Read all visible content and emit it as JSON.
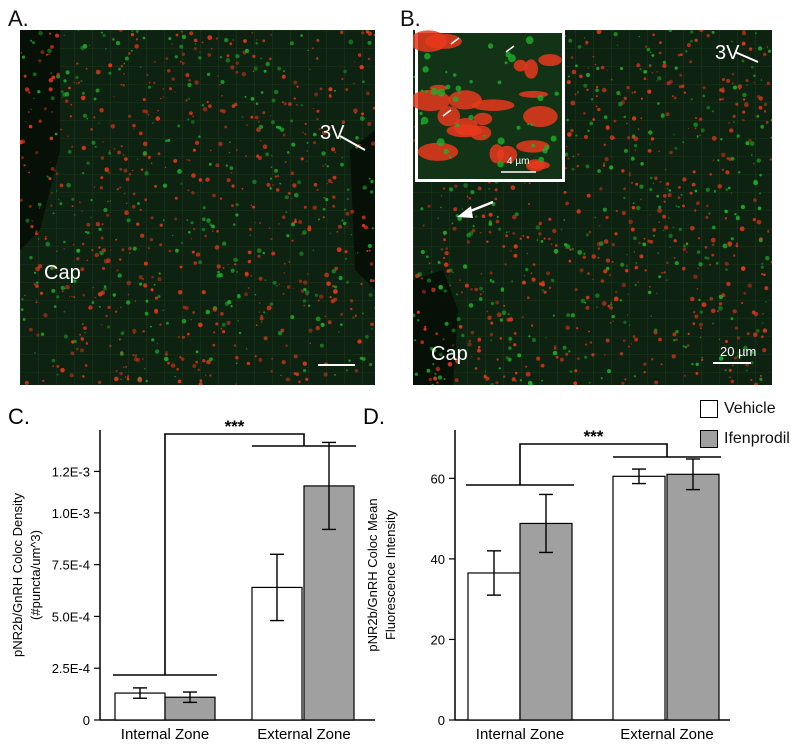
{
  "panels": {
    "a": {
      "letter": "A.",
      "labels": {
        "cap": "Cap",
        "ventricle": "3V"
      }
    },
    "b": {
      "letter": "B.",
      "labels": {
        "cap": "Cap",
        "ventricle": "3V"
      },
      "scale_bar": "20 µm",
      "inset_scale_bar": "4 µm"
    }
  },
  "colors": {
    "vehicle": "#ffffff",
    "ifenprodil": "#a0a0a0",
    "red_channel": "#e8381c",
    "green_channel": "#1fae2a"
  },
  "legend": [
    {
      "name": "Vehicle",
      "color": "#ffffff"
    },
    {
      "name": "Ifenprodil",
      "color": "#a0a0a0"
    }
  ],
  "chart_data": [
    {
      "panel": "C.",
      "type": "bar",
      "categories": [
        "Internal Zone",
        "External Zone"
      ],
      "series": [
        {
          "name": "Vehicle",
          "values": [
            0.00013,
            0.00064
          ],
          "errors": [
            2.5e-05,
            0.00016
          ]
        },
        {
          "name": "Ifenprodil",
          "values": [
            0.00011,
            0.00113
          ],
          "errors": [
            2.5e-05,
            0.00021
          ]
        }
      ],
      "ylabel_lines": [
        "pNR2b/GnRH Coloc Density",
        "(#puncta/um^3)"
      ],
      "yticks": [
        0,
        0.00025,
        0.0005,
        0.00075,
        0.001,
        0.0012
      ],
      "ytick_labels": [
        "0",
        "2.5E-4",
        "5.0E-4",
        "7.5E-4",
        "1.0E-3",
        "1.2E-3"
      ],
      "ylim": [
        0,
        0.0014
      ],
      "significance": "***"
    },
    {
      "panel": "D.",
      "type": "bar",
      "categories": [
        "Internal Zone",
        "External Zone"
      ],
      "series": [
        {
          "name": "Vehicle",
          "values": [
            36.5,
            60.5
          ],
          "errors": [
            5.5,
            1.8
          ]
        },
        {
          "name": "Ifenprodil",
          "values": [
            48.8,
            61.0
          ],
          "errors": [
            7.2,
            3.8
          ]
        }
      ],
      "ylabel_lines": [
        "pNR2b/GnRH Coloc Mean",
        "Fluorescence Intensity"
      ],
      "yticks": [
        0,
        20,
        40,
        60
      ],
      "ytick_labels": [
        "0",
        "20",
        "40",
        "60"
      ],
      "ylim": [
        0,
        72
      ],
      "significance": "***"
    }
  ]
}
